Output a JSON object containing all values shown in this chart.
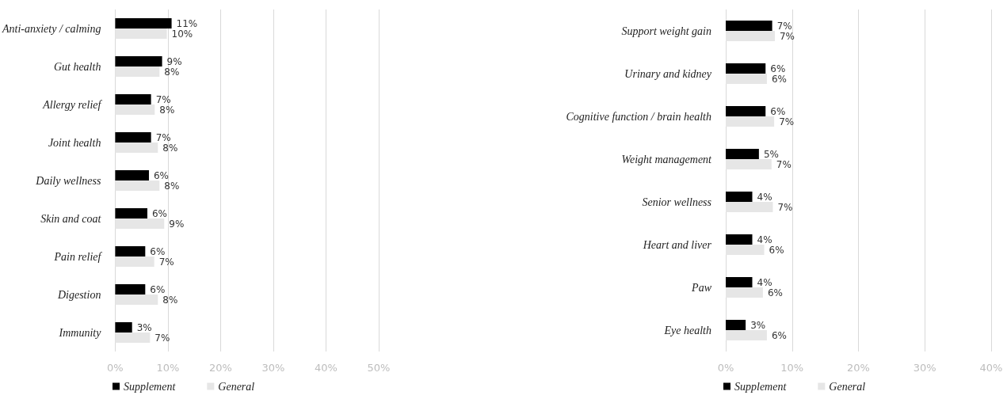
{
  "chart_data": [
    {
      "type": "bar",
      "orientation": "horizontal",
      "categories": [
        "Anti-anxiety / calming",
        "Gut health",
        "Allergy relief",
        "Joint health",
        "Daily wellness",
        "Skin and coat",
        "Pain relief",
        "Digestion",
        "Immunity"
      ],
      "series": [
        {
          "name": "Supplement",
          "color": "#000000",
          "values": [
            10.7,
            8.9,
            6.8,
            6.8,
            6.4,
            6.1,
            5.7,
            5.7,
            3.2
          ],
          "value_labels": [
            "11%",
            "9%",
            "7%",
            "7%",
            "6%",
            "6%",
            "6%",
            "6%",
            "3%"
          ]
        },
        {
          "name": "General",
          "color": "#e6e6e6",
          "values": [
            9.8,
            8.4,
            7.5,
            8.1,
            8.4,
            9.3,
            7.4,
            8.1,
            6.6
          ],
          "value_labels": [
            "10%",
            "8%",
            "8%",
            "8%",
            "8%",
            "9%",
            "7%",
            "8%",
            "7%"
          ]
        }
      ],
      "xlim": [
        0,
        50
      ],
      "xticks": [
        {
          "value": 0,
          "label": "0%"
        },
        {
          "value": 10,
          "label": "10%"
        },
        {
          "value": 20,
          "label": "20%"
        },
        {
          "value": 30,
          "label": "30%"
        },
        {
          "value": 40,
          "label": "40%"
        },
        {
          "value": 50,
          "label": "50%"
        }
      ],
      "grid": "x",
      "legend": "bottom left"
    },
    {
      "type": "bar",
      "orientation": "horizontal",
      "categories": [
        "Support weight gain",
        "Urinary and kidney",
        "Cognitive function / brain health",
        "Weight management",
        "Senior wellness",
        "Heart and liver",
        "Paw",
        "Eye health"
      ],
      "series": [
        {
          "name": "Supplement",
          "color": "#000000",
          "values": [
            7.0,
            6.0,
            6.0,
            5.0,
            4.0,
            4.0,
            4.0,
            3.0
          ],
          "value_labels": [
            "7%",
            "6%",
            "6%",
            "5%",
            "4%",
            "4%",
            "4%",
            "3%"
          ]
        },
        {
          "name": "General",
          "color": "#e6e6e6",
          "values": [
            7.4,
            6.2,
            7.3,
            6.9,
            7.1,
            5.8,
            5.6,
            6.2
          ],
          "value_labels": [
            "7%",
            "6%",
            "7%",
            "7%",
            "7%",
            "6%",
            "6%",
            "6%"
          ]
        }
      ],
      "xlim": [
        0,
        40
      ],
      "xticks": [
        {
          "value": 0,
          "label": "0%"
        },
        {
          "value": 10,
          "label": "10%"
        },
        {
          "value": 20,
          "label": "20%"
        },
        {
          "value": 30,
          "label": "30%"
        },
        {
          "value": 40,
          "label": "40%"
        }
      ],
      "grid": "x",
      "legend": "bottom left"
    }
  ]
}
